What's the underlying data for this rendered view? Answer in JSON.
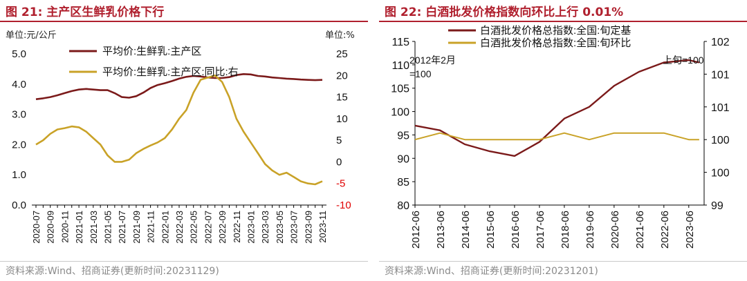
{
  "left": {
    "figure_label": "图 21:",
    "figure_title": "主产区生鲜乳价格下行",
    "unit_left": "单位:元/公斤",
    "unit_right": "单位:%",
    "source": "资料来源:Wind、招商证券(更新时间:20231129)",
    "colors": {
      "price": "#7b1a1a",
      "yoy": "#c9a227",
      "red_tick": "#e00000"
    }
  },
  "right": {
    "figure_label": "图 22:",
    "figure_title": "白酒批发价格指数向环比上行 0.01%",
    "annotation_left": "2012年2月\n=100",
    "annotation_right": "上旬=100",
    "source": "资料来源:Wind、招商证券(更新时间:20231201)",
    "colors": {
      "index": "#7b1a1a",
      "mom": "#c9a227"
    }
  },
  "chart_data": [
    {
      "type": "line",
      "x": [
        "2020-07",
        "2020-08",
        "2020-09",
        "2020-10",
        "2020-11",
        "2020-12",
        "2021-01",
        "2021-02",
        "2021-03",
        "2021-04",
        "2021-05",
        "2021-06",
        "2021-07",
        "2021-08",
        "2021-09",
        "2021-10",
        "2021-11",
        "2021-12",
        "2022-01",
        "2022-02",
        "2022-03",
        "2022-04",
        "2022-05",
        "2022-06",
        "2022-07",
        "2022-08",
        "2022-09",
        "2022-10",
        "2022-11",
        "2022-12",
        "2023-01",
        "2023-02",
        "2023-03",
        "2023-04",
        "2023-05",
        "2023-06",
        "2023-07",
        "2023-08",
        "2023-09",
        "2023-10",
        "2023-11"
      ],
      "x_tick_labels": [
        "2020-07",
        "2020-09",
        "2020-11",
        "2021-01",
        "2021-03",
        "2021-05",
        "2021-07",
        "2021-09",
        "2021-11",
        "2022-01",
        "2022-03",
        "2022-05",
        "2022-07",
        "2022-09",
        "2022-11",
        "2023-01",
        "2023-03",
        "2023-05",
        "2023-07",
        "2023-09",
        "2023-11"
      ],
      "series": [
        {
          "name": "平均价:生鲜乳:主产区",
          "axis": "left",
          "values": [
            3.5,
            3.53,
            3.57,
            3.63,
            3.7,
            3.77,
            3.82,
            3.84,
            3.82,
            3.8,
            3.8,
            3.7,
            3.57,
            3.55,
            3.6,
            3.72,
            3.87,
            3.97,
            4.03,
            4.1,
            4.18,
            4.24,
            4.27,
            4.25,
            4.22,
            4.2,
            4.2,
            4.23,
            4.3,
            4.33,
            4.32,
            4.27,
            4.25,
            4.22,
            4.2,
            4.18,
            4.17,
            4.15,
            4.14,
            4.13,
            4.14
          ]
        },
        {
          "name": "平均价:生鲜乳:主产区:同比:右",
          "axis": "right",
          "values": [
            4.0,
            5.0,
            6.5,
            7.5,
            7.8,
            8.2,
            8.0,
            7.0,
            5.5,
            4.0,
            1.5,
            0.0,
            0.0,
            0.5,
            2.0,
            3.0,
            3.8,
            4.5,
            5.5,
            7.5,
            10.0,
            12.0,
            16.0,
            19.0,
            19.5,
            20.0,
            18.5,
            15.0,
            10.0,
            7.0,
            4.5,
            2.0,
            -0.5,
            -2.0,
            -3.0,
            -2.5,
            -3.5,
            -4.5,
            -5.0,
            -5.2,
            -4.5
          ]
        }
      ],
      "y_left": {
        "ticks": [
          "0.0",
          "1.0",
          "2.0",
          "3.0",
          "4.0",
          "5.0"
        ],
        "lim": [
          0,
          5
        ]
      },
      "y_right": {
        "ticks": [
          "-10",
          "-5",
          "0",
          "5",
          "10",
          "15",
          "20",
          "25"
        ],
        "lim": [
          -10,
          25
        ]
      },
      "legend": "top-left",
      "grid": false
    },
    {
      "type": "line",
      "x": [
        "2012-06",
        "2013-06",
        "2014-06",
        "2015-06",
        "2016-06",
        "2017-06",
        "2018-06",
        "2019-06",
        "2020-06",
        "2021-06",
        "2022-06",
        "2023-06",
        "2023-11"
      ],
      "x_tick_labels": [
        "2012-06",
        "2013-06",
        "2014-06",
        "2015-06",
        "2016-06",
        "2017-06",
        "2018-06",
        "2019-06",
        "2020-06",
        "2021-06",
        "2022-06",
        "2023-06"
      ],
      "series": [
        {
          "name": "白酒批发价格总指数:全国:旬定基",
          "axis": "left",
          "values": [
            97.0,
            96.0,
            93.0,
            91.5,
            90.5,
            93.5,
            98.5,
            101.0,
            105.5,
            108.5,
            110.5,
            111.0,
            110.5
          ]
        },
        {
          "name": "白酒批发价格总指数:全国:旬环比",
          "axis": "right",
          "values": [
            100.0,
            100.1,
            100.0,
            100.0,
            100.0,
            100.0,
            100.1,
            100.0,
            100.1,
            100.1,
            100.1,
            100.0,
            100.0
          ]
        }
      ],
      "y_left": {
        "ticks": [
          "80",
          "85",
          "90",
          "95",
          "100",
          "105",
          "110",
          "115"
        ],
        "lim": [
          80,
          115
        ]
      },
      "y_right": {
        "ticks": [
          "99",
          "100",
          "100",
          "101",
          "101",
          "102"
        ],
        "lim": [
          99,
          102
        ]
      },
      "legend": "top-center",
      "grid": false
    }
  ]
}
